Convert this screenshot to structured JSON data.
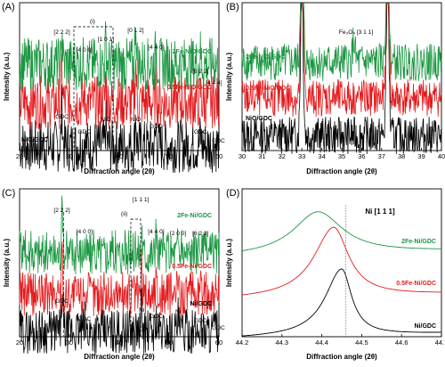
{
  "chart_data": [
    {
      "panel_label": "(A)",
      "type": "line",
      "xlabel": "Diffraction angle (2θ)",
      "ylabel": "Intensity (a.u.)",
      "xlim": [
        20,
        60
      ],
      "xticks": [
        20,
        30,
        40,
        50,
        60
      ],
      "series": [
        {
          "name": "NiO/GDC",
          "color": "#000000",
          "peaks": [
            [
              28.5,
              0.85
            ],
            [
              33.0,
              0.2
            ],
            [
              37.3,
              0.5
            ],
            [
              43.3,
              0.75
            ],
            [
              47.4,
              0.4
            ],
            [
              56.3,
              0.25
            ],
            [
              59.0,
              0.12
            ]
          ]
        },
        {
          "name": "0.5Fe-NiO/GDC",
          "color": "#e41a1c",
          "peaks": [
            [
              28.5,
              0.8
            ],
            [
              33.0,
              0.2
            ],
            [
              37.3,
              0.55
            ],
            [
              43.3,
              0.9
            ],
            [
              47.4,
              0.4
            ],
            [
              56.3,
              0.25
            ],
            [
              59.0,
              0.12
            ]
          ]
        },
        {
          "name": "2Fe-NiO/GDC",
          "color": "#1a9641",
          "peaks": [
            [
              28.5,
              0.8
            ],
            [
              33.0,
              0.2
            ],
            [
              37.3,
              0.5
            ],
            [
              43.3,
              1.0
            ],
            [
              47.4,
              0.4
            ],
            [
              56.3,
              0.25
            ],
            [
              59.0,
              0.12
            ]
          ]
        }
      ],
      "annotations": {
        "top": [
          {
            "text": "[2 2 2]",
            "x": 28.5
          },
          {
            "text": "[4 0 0]",
            "x": 33.0
          },
          {
            "text": "[1 0 1]",
            "x": 37.3
          },
          {
            "text": "[0 1 2]",
            "x": 43.3
          },
          {
            "text": "[4 4 0]",
            "x": 47.4
          },
          {
            "text": "[6 2 2]",
            "x": 56.3
          },
          {
            "text": "[4 4 4]",
            "x": 59.0
          }
        ],
        "bottom": [
          {
            "text": "GDC",
            "x": 28.5
          },
          {
            "text": "GDC",
            "x": 33.0
          },
          {
            "text": "NiO",
            "x": 37.3
          },
          {
            "text": "NiO",
            "x": 43.3
          },
          {
            "text": "GDC",
            "x": 47.4
          },
          {
            "text": "GDC",
            "x": 56.3
          },
          {
            "text": "GDC",
            "x": 59.0
          }
        ],
        "box_label": "(i)"
      }
    },
    {
      "panel_label": "(B)",
      "type": "line",
      "xlabel": "Diffraction angle (2θ)",
      "ylabel": "Intensity (a.u.)",
      "xlim": [
        30,
        40
      ],
      "xticks": [
        30,
        31,
        32,
        33,
        34,
        35,
        36,
        37,
        38,
        39,
        40
      ],
      "series": [
        {
          "name": "NiO/GDC",
          "color": "#000000",
          "peaks": [
            [
              33.0,
              2.0
            ],
            [
              37.3,
              2.0
            ]
          ]
        },
        {
          "name": "0.5Fe-NiO/GDC",
          "color": "#e41a1c",
          "peaks": [
            [
              33.0,
              2.0
            ],
            [
              37.3,
              2.0
            ]
          ]
        },
        {
          "name": "2Fe-NiO/GDC",
          "color": "#1a9641",
          "peaks": [
            [
              33.0,
              2.0
            ],
            [
              35.6,
              0.25
            ],
            [
              37.3,
              2.0
            ]
          ]
        }
      ],
      "annotations": {
        "fe3o4": {
          "label": "Fe₃O₄ [3 1 1]",
          "x": 35.6
        }
      }
    },
    {
      "panel_label": "(C)",
      "type": "line",
      "xlabel": "Diffraction angle (2θ)",
      "ylabel": "Intensity (a.u.)",
      "xlim": [
        20,
        60
      ],
      "xticks": [
        20,
        30,
        40,
        50,
        60
      ],
      "series": [
        {
          "name": "Ni/GDC",
          "color": "#000000",
          "peaks": [
            [
              28.5,
              0.8
            ],
            [
              33.0,
              0.2
            ],
            [
              44.5,
              0.55
            ],
            [
              47.4,
              0.35
            ],
            [
              51.8,
              0.3
            ],
            [
              56.3,
              0.2
            ],
            [
              59.0,
              0.1
            ]
          ]
        },
        {
          "name": "0.5Fe-Ni/GDC",
          "color": "#e41a1c",
          "peaks": [
            [
              28.5,
              0.8
            ],
            [
              33.0,
              0.2
            ],
            [
              44.5,
              0.6
            ],
            [
              47.4,
              0.35
            ],
            [
              51.8,
              0.3
            ],
            [
              56.3,
              0.2
            ],
            [
              59.0,
              0.1
            ]
          ]
        },
        {
          "name": "2Fe-Ni/GDC",
          "color": "#1a9641",
          "peaks": [
            [
              28.5,
              0.8
            ],
            [
              33.0,
              0.2
            ],
            [
              44.5,
              0.65
            ],
            [
              47.4,
              0.35
            ],
            [
              51.8,
              0.3
            ],
            [
              56.3,
              0.2
            ],
            [
              59.0,
              0.1
            ]
          ]
        }
      ],
      "annotations": {
        "top": [
          {
            "text": "[2 2 2]",
            "x": 28.5
          },
          {
            "text": "[4 0 0]",
            "x": 33.0
          },
          {
            "text": "[1 1 1]",
            "x": 44.5
          },
          {
            "text": "[4 4 0]",
            "x": 47.4
          },
          {
            "text": "[2 0 0]",
            "x": 51.8
          },
          {
            "text": "[6 2 2]",
            "x": 56.3
          }
        ],
        "bottom": [
          {
            "text": "GDC",
            "x": 28.5
          },
          {
            "text": "GDC",
            "x": 33.0
          },
          {
            "text": "Ni",
            "x": 44.5
          },
          {
            "text": "GDC",
            "x": 47.4
          },
          {
            "text": "Ni",
            "x": 51.8
          },
          {
            "text": "GDC",
            "x": 56.3
          },
          {
            "text": "GDC",
            "x": 59.0
          }
        ],
        "box_label": "(ii)"
      }
    },
    {
      "panel_label": "(D)",
      "type": "line",
      "xlabel": "Diffraction angle (2θ)",
      "ylabel": "Intensity (a.u.)",
      "xlim": [
        44.2,
        44.7
      ],
      "xticks": [
        "44.2",
        "44.3",
        "44.4",
        "44.5",
        "44.6",
        "44.7"
      ],
      "series": [
        {
          "name": "Ni/GDC",
          "color": "#000000",
          "peak_center": 44.45
        },
        {
          "name": "0.5Fe-Ni/GDC",
          "color": "#e41a1c",
          "peak_center": 44.43
        },
        {
          "name": "2Fe-Ni/GDC",
          "color": "#1a9641",
          "peak_center": 44.39
        }
      ],
      "annotations": {
        "ref_label": "Ni [1 1 1]",
        "ref_x": 44.46
      }
    }
  ]
}
